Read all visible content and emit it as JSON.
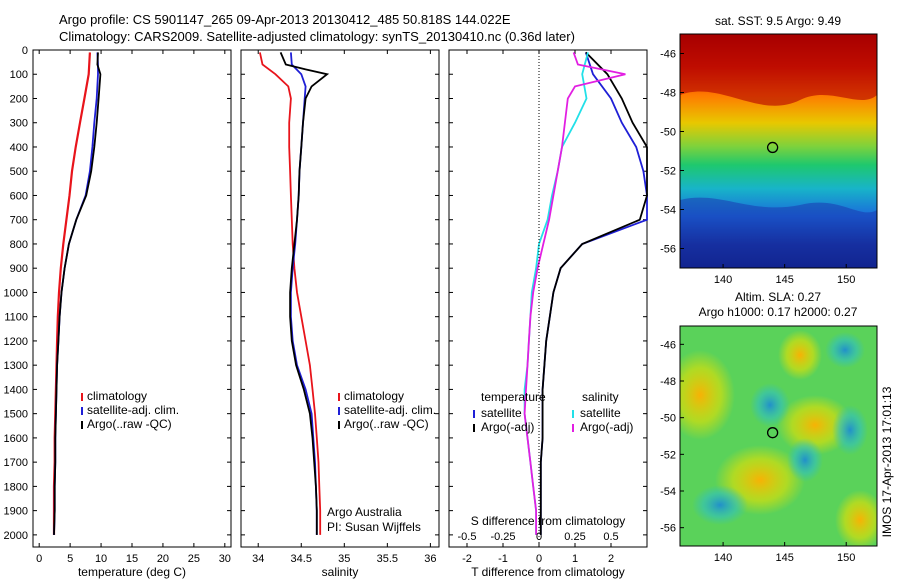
{
  "header": {
    "line1": "Argo profile: CS 5901147_265 09-Apr-2013 20130412_485 50.818S 144.022E",
    "line2": "Climatology: CARS2009. Satellite-adjusted climatology: synTS_20130410.nc (0.36d later)"
  },
  "colors": {
    "climatology": "#e8141b",
    "satellite": "#1f1fd6",
    "argo": "#000000",
    "satellite_s": "#22e0e8",
    "argo_s": "#e21fe2"
  },
  "depth_axis": {
    "ticks": [
      "0",
      "100",
      "200",
      "300",
      "400",
      "500",
      "600",
      "700",
      "800",
      "900",
      "1000",
      "1100",
      "1200",
      "1300",
      "1400",
      "1500",
      "1600",
      "1700",
      "1800",
      "1900",
      "2000"
    ]
  },
  "chart_data": [
    {
      "type": "line",
      "xlabel": "temperature (deg C)",
      "xlim": [
        -1,
        31
      ],
      "ylim": [
        2050,
        0
      ],
      "xticks": [
        0,
        5,
        10,
        15,
        20,
        25,
        30
      ],
      "legend": [
        "climatology",
        "satellite-adj. clim.",
        "Argo(..raw -QC)"
      ],
      "series": [
        {
          "name": "climatology",
          "depth": [
            10,
            100,
            200,
            300,
            400,
            500,
            600,
            700,
            800,
            900,
            1000,
            1100,
            1200,
            1300,
            1400,
            1500,
            1600,
            1700,
            1800,
            1900,
            2000
          ],
          "values": [
            8.2,
            8.0,
            7.3,
            6.6,
            5.9,
            5.3,
            4.9,
            4.4,
            3.9,
            3.5,
            3.2,
            3.0,
            2.9,
            2.8,
            2.7,
            2.6,
            2.5,
            2.5,
            2.4,
            2.4,
            2.4
          ]
        },
        {
          "name": "satellite-adj. clim.",
          "depth": [
            10,
            60,
            100,
            200,
            300,
            400,
            500,
            600,
            700,
            800,
            900,
            1000,
            1100,
            1200,
            1300,
            1400,
            1500,
            1600,
            1700,
            1800,
            1900,
            2000
          ],
          "values": [
            9.4,
            9.5,
            9.5,
            9.3,
            8.9,
            8.6,
            8.2,
            7.5,
            6.0,
            4.8,
            4.1,
            3.6,
            3.3,
            3.1,
            2.9,
            2.8,
            2.7,
            2.6,
            2.6,
            2.5,
            2.5,
            2.4
          ]
        },
        {
          "name": "Argo(..raw -QC)",
          "depth": [
            10,
            60,
            100,
            200,
            300,
            400,
            500,
            600,
            700,
            800,
            900,
            1000,
            1100,
            1200,
            1300,
            1400,
            1500,
            1600,
            1700,
            1800,
            1900,
            2000
          ],
          "values": [
            9.5,
            9.4,
            9.9,
            9.6,
            9.3,
            8.9,
            8.4,
            7.6,
            6.0,
            4.8,
            4.1,
            3.6,
            3.3,
            3.1,
            2.9,
            2.8,
            2.7,
            2.6,
            2.6,
            2.5,
            2.5,
            2.4
          ]
        }
      ]
    },
    {
      "type": "line",
      "xlabel": "salinity",
      "xlim": [
        33.8,
        36.1
      ],
      "ylim": [
        2050,
        0
      ],
      "xticks": [
        34,
        34.5,
        35,
        35.5,
        36
      ],
      "legend": [
        "climatology",
        "satellite-adj. clim.",
        "Argo(..raw -QC)"
      ],
      "annotation": [
        "Argo Australia",
        "PI: Susan Wijffels"
      ],
      "series": [
        {
          "name": "climatology",
          "depth": [
            10,
            60,
            100,
            150,
            200,
            300,
            400,
            500,
            600,
            700,
            800,
            900,
            1000,
            1100,
            1200,
            1300,
            1400,
            1500,
            1600,
            1700,
            1800,
            1900,
            2000
          ],
          "values": [
            34.02,
            34.05,
            34.2,
            34.35,
            34.38,
            34.36,
            34.36,
            34.37,
            34.38,
            34.39,
            34.4,
            34.42,
            34.45,
            34.5,
            34.55,
            34.6,
            34.63,
            34.66,
            34.68,
            34.7,
            34.71,
            34.72,
            34.72
          ]
        },
        {
          "name": "satellite-adj. clim.",
          "depth": [
            10,
            60,
            100,
            150,
            200,
            300,
            400,
            500,
            600,
            700,
            800,
            900,
            1000,
            1100,
            1200,
            1300,
            1400,
            1500,
            1600,
            1700,
            1800,
            1900,
            2000
          ],
          "values": [
            34.38,
            34.39,
            34.5,
            34.55,
            34.54,
            34.52,
            34.5,
            34.48,
            34.47,
            34.45,
            34.43,
            34.4,
            34.38,
            34.38,
            34.4,
            34.45,
            34.55,
            34.62,
            34.64,
            34.66,
            34.67,
            34.68,
            34.68
          ]
        },
        {
          "name": "Argo(..raw -QC)",
          "depth": [
            10,
            60,
            80,
            100,
            150,
            200,
            300,
            400,
            500,
            600,
            700,
            800,
            900,
            1000,
            1100,
            1200,
            1300,
            1400,
            1500,
            1600,
            1700,
            1800,
            1900,
            2000
          ],
          "values": [
            34.26,
            34.32,
            34.55,
            34.8,
            34.62,
            34.55,
            34.52,
            34.5,
            34.48,
            34.47,
            34.45,
            34.42,
            34.39,
            34.37,
            34.37,
            34.39,
            34.44,
            34.53,
            34.6,
            34.63,
            34.65,
            34.67,
            34.68,
            34.68
          ]
        }
      ]
    },
    {
      "type": "line",
      "xlabel": "T difference from climatology",
      "x2label": "S difference from climatology",
      "xlim": [
        -2.5,
        3
      ],
      "x2lim": [
        -0.625,
        0.75
      ],
      "ylim": [
        2050,
        0
      ],
      "xticks": [
        -2,
        -1,
        0,
        1,
        2
      ],
      "x2ticks": [
        -0.5,
        -0.25,
        0,
        0.25,
        0.5
      ],
      "legend_temperature_title": "temperature",
      "legend_salinity_title": "salinity",
      "legend": [
        "satellite",
        "Argo(-adj)",
        "satellite",
        "Argo(-adj)"
      ],
      "series": [
        {
          "name": "satellite",
          "depth": [
            10,
            100,
            200,
            300,
            400,
            500,
            600,
            700,
            800,
            900,
            1000,
            1100,
            1200,
            1300,
            1400,
            1500,
            1600,
            1700,
            1800,
            1900,
            2000
          ],
          "values": [
            1.3,
            1.5,
            2.0,
            2.3,
            2.7,
            2.9,
            3.0,
            3.0,
            1.2,
            0.6,
            0.4,
            0.3,
            0.2,
            0.15,
            0.1,
            0.1,
            0.1,
            0.05,
            0.05,
            0.05,
            0.05
          ]
        },
        {
          "name": "Argo(-adj)",
          "depth": [
            10,
            100,
            200,
            300,
            400,
            500,
            600,
            700,
            800,
            900,
            1000,
            1100,
            1200,
            1300,
            1400,
            1500,
            1600,
            1700,
            1800,
            1900,
            2000
          ],
          "values": [
            1.3,
            1.9,
            2.3,
            2.6,
            3.0,
            3.0,
            3.0,
            2.8,
            1.2,
            0.6,
            0.4,
            0.3,
            0.2,
            0.15,
            0.1,
            0.1,
            0.1,
            0.05,
            0.05,
            0.05,
            0.05
          ]
        },
        {
          "name": "satellite",
          "depth": [
            10,
            100,
            200,
            300,
            400,
            500,
            600,
            700,
            800,
            900,
            1000,
            1100,
            1200,
            1300,
            1400,
            1500,
            1600,
            1700,
            1800,
            1900,
            2000
          ],
          "values": [
            0.34,
            0.3,
            0.33,
            0.25,
            0.16,
            0.13,
            0.09,
            0.06,
            0.0,
            -0.02,
            -0.05,
            -0.06,
            -0.07,
            -0.08,
            -0.1,
            -0.1,
            -0.08,
            -0.06,
            -0.04,
            -0.02,
            -0.02
          ]
        },
        {
          "name": "Argo(-adj)",
          "depth": [
            10,
            60,
            100,
            150,
            200,
            300,
            400,
            500,
            600,
            700,
            800,
            900,
            1000,
            1100,
            1200,
            1300,
            1400,
            1500,
            1600,
            1700,
            1800,
            1900,
            2000
          ],
          "values": [
            0.24,
            0.27,
            0.6,
            0.25,
            0.2,
            0.18,
            0.16,
            0.13,
            0.1,
            0.07,
            0.03,
            -0.01,
            -0.04,
            -0.06,
            -0.07,
            -0.08,
            -0.09,
            -0.1,
            -0.08,
            -0.06,
            -0.04,
            -0.02,
            -0.02
          ]
        }
      ]
    },
    {
      "type": "heatmap",
      "title": "sat. SST: 9.5 Argo: 9.49",
      "xticks": [
        140,
        145,
        150
      ],
      "yticks": [
        -46,
        -48,
        -50,
        -52,
        -54,
        -56
      ],
      "xlim": [
        136.5,
        152.5
      ],
      "ylim": [
        -57,
        -45
      ],
      "marker": {
        "lon": 144.022,
        "lat": -50.818
      }
    },
    {
      "type": "heatmap",
      "title_line1": "Altim. SLA: 0.27",
      "title_line2": "Argo h1000: 0.17 h2000: 0.27",
      "side_label": "IMOS 17-Apr-2013 17:01:13",
      "xticks": [
        140,
        145,
        150
      ],
      "yticks": [
        -46,
        -48,
        -50,
        -52,
        -54,
        -56
      ],
      "xlim": [
        136.5,
        152.5
      ],
      "ylim": [
        -57,
        -45
      ],
      "marker": {
        "lon": 144.022,
        "lat": -50.818
      }
    }
  ]
}
